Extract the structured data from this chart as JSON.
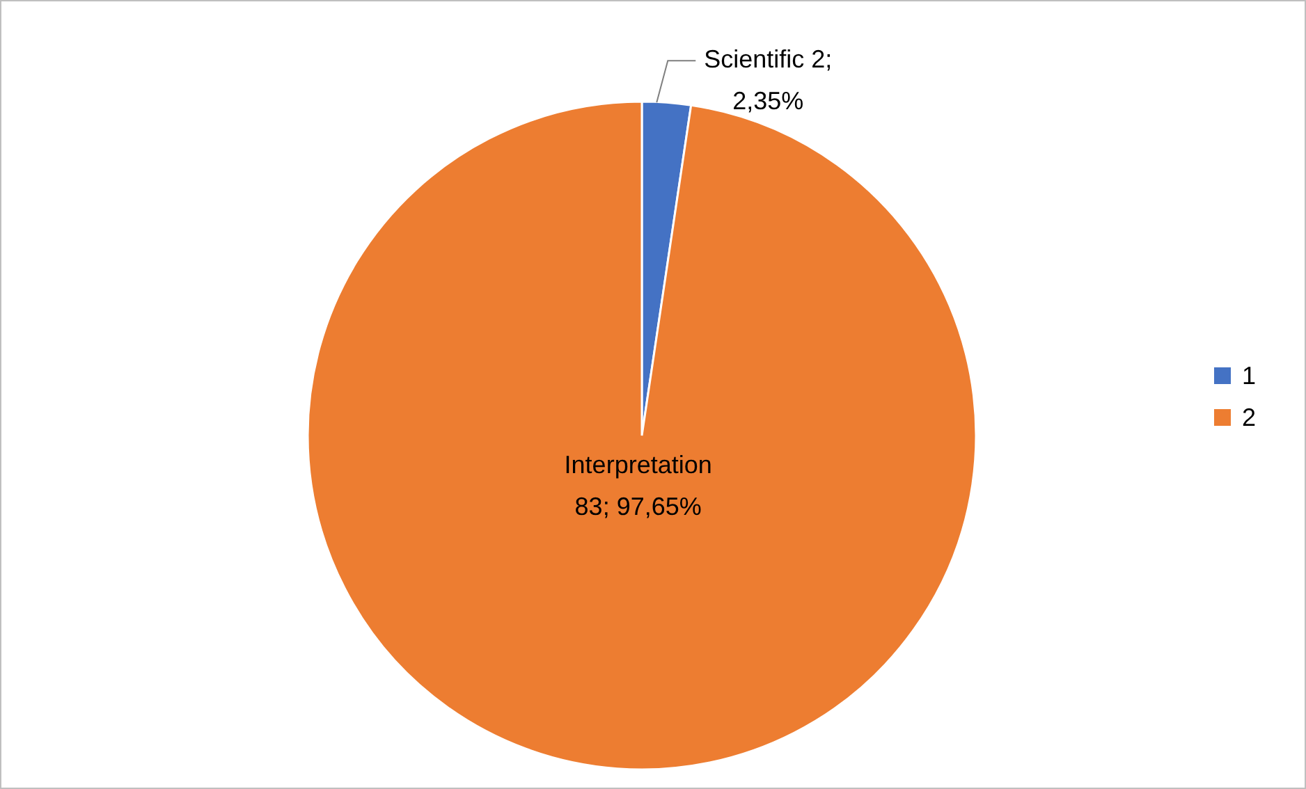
{
  "chart_data": {
    "type": "pie",
    "categories": [
      "1",
      "2"
    ],
    "values": [
      2,
      83
    ],
    "colors": [
      "#4472c4",
      "#ed7d31"
    ],
    "value_labels": [
      "Scientific 2;\n2,35%",
      "Interpretation\n83; 97,65%"
    ],
    "legend": "right"
  }
}
